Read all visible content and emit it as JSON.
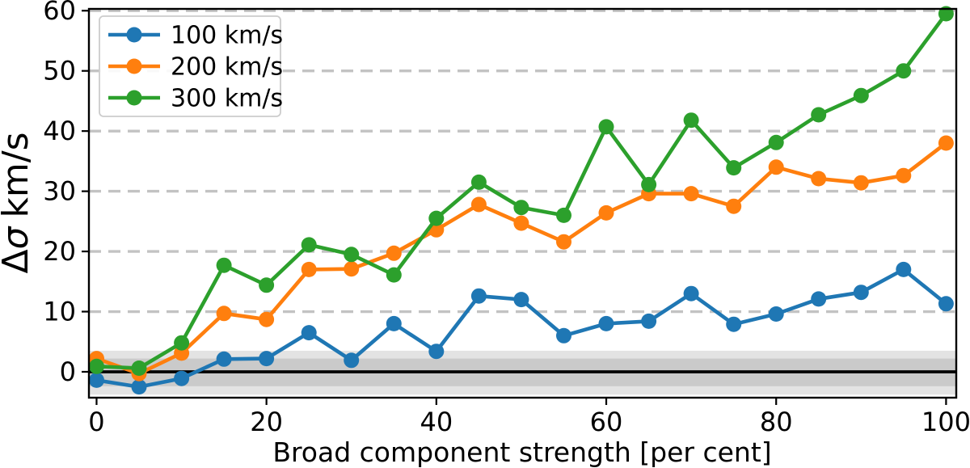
{
  "figure": {
    "xlabel": "Broad component strength [per cent]",
    "ylabel_delta": "Δ",
    "ylabel_sigma": "σ",
    "ylabel_units": "km/s"
  },
  "chart_data": {
    "type": "line",
    "title": "",
    "xlabel": "Broad component strength [per cent]",
    "ylabel": "Δσ km/s",
    "x": [
      0,
      5,
      10,
      15,
      20,
      25,
      30,
      35,
      40,
      45,
      50,
      55,
      60,
      65,
      70,
      75,
      80,
      85,
      90,
      95,
      100
    ],
    "series": [
      {
        "name": "100 km/s",
        "color": "#1f77b4",
        "values": [
          -1.4,
          -2.5,
          -1.1,
          2.1,
          2.2,
          6.5,
          1.9,
          8.0,
          3.4,
          12.6,
          12.0,
          6.0,
          8.0,
          8.4,
          13.0,
          7.9,
          9.6,
          12.1,
          13.2,
          17.0,
          11.3
        ]
      },
      {
        "name": "200 km/s",
        "color": "#ff7f0e",
        "values": [
          2.2,
          -0.3,
          3.1,
          9.7,
          8.7,
          17.0,
          17.1,
          19.7,
          23.6,
          27.8,
          24.7,
          21.6,
          26.4,
          29.6,
          29.6,
          27.5,
          34.0,
          32.1,
          31.4,
          32.6,
          38.0
        ]
      },
      {
        "name": "300 km/s",
        "color": "#2ca02c",
        "values": [
          0.9,
          0.6,
          4.8,
          17.7,
          14.4,
          21.1,
          19.5,
          16.1,
          25.5,
          31.5,
          27.3,
          26.0,
          40.7,
          31.1,
          41.8,
          33.9,
          38.1,
          42.7,
          45.9,
          50.0,
          59.5
        ]
      }
    ],
    "xlim": [
      -0.9,
      101.2
    ],
    "ylim": [
      -4.3,
      60.3
    ],
    "x_ticks": [
      0,
      20,
      40,
      60,
      80,
      100
    ],
    "y_ticks": [
      0,
      10,
      20,
      30,
      40,
      50,
      60
    ],
    "grid": {
      "axis": "y",
      "style": "dashed",
      "color": "#c3c3c3"
    },
    "legend_position": "upper left",
    "zero_line": {
      "y": 0,
      "color": "#000000"
    },
    "bands": [
      {
        "lo": -3.8,
        "hi": 3.5,
        "color": "#000000",
        "opacity": 0.11
      },
      {
        "lo": -2.4,
        "hi": 2.2,
        "color": "#000000",
        "opacity": 0.11
      }
    ]
  }
}
